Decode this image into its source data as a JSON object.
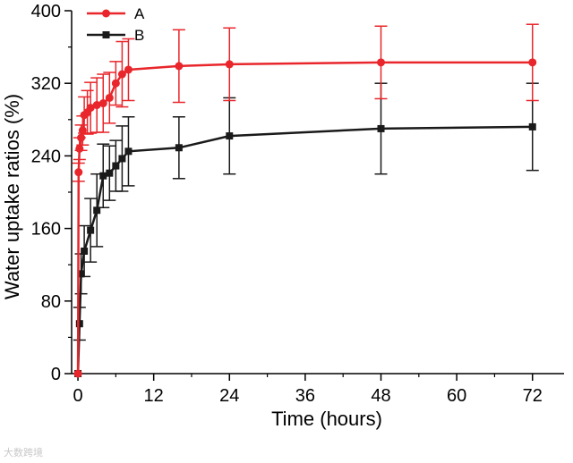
{
  "chart_data": {
    "type": "line",
    "title": "",
    "xlabel": "Time (hours)",
    "ylabel": "Water uptake ratios (%)",
    "xlim": [
      -1,
      77
    ],
    "ylim": [
      0,
      400
    ],
    "xticks": [
      0,
      12,
      24,
      36,
      48,
      60,
      72
    ],
    "yticks": [
      0,
      80,
      160,
      240,
      320,
      400
    ],
    "legend_position": "top-left",
    "series": [
      {
        "name": "A",
        "color": "#e8262b",
        "marker": "circle",
        "x": [
          0,
          0.1,
          0.25,
          0.5,
          0.75,
          1,
          1.5,
          2,
          3,
          4,
          5,
          6,
          7,
          8,
          16,
          24,
          48,
          72
        ],
        "y": [
          0,
          222,
          248,
          260,
          268,
          285,
          288,
          293,
          296,
          298,
          304,
          320,
          330,
          335,
          339,
          341,
          343,
          343
        ],
        "error": [
          0,
          10,
          12,
          14,
          16,
          20,
          24,
          28,
          30,
          32,
          28,
          24,
          36,
          34,
          40,
          40,
          40,
          42
        ]
      },
      {
        "name": "B",
        "color": "#1a1a1a",
        "marker": "square",
        "x": [
          0,
          0.25,
          0.5,
          1,
          2,
          3,
          4,
          5,
          6,
          7,
          8,
          16,
          24,
          48,
          72
        ],
        "y": [
          0,
          55,
          110,
          135,
          158,
          180,
          218,
          221,
          229,
          237,
          245,
          249,
          262,
          270,
          272
        ],
        "error": [
          0,
          18,
          22,
          28,
          35,
          40,
          35,
          30,
          28,
          36,
          38,
          34,
          42,
          50,
          48
        ]
      }
    ]
  },
  "watermark": "大数跨境"
}
